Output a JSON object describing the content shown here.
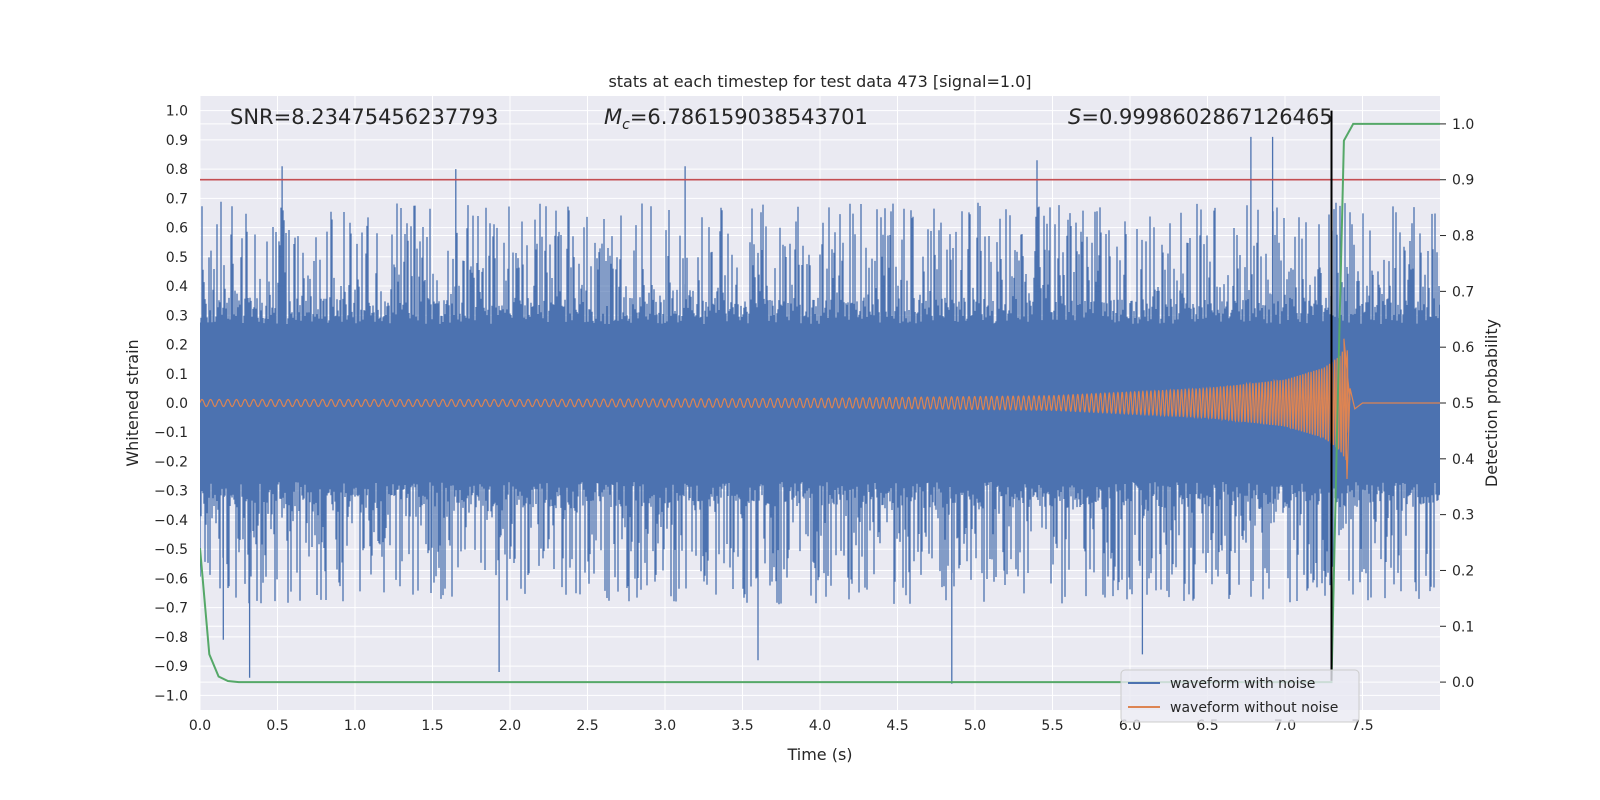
{
  "chart_data": {
    "type": "line",
    "title": "stats at each timestep for test data 473 [signal=1.0]",
    "xlabel": "Time (s)",
    "ylabel": "Whitened strain",
    "y2label": "Detection probability",
    "xlim": [
      0.0,
      8.0
    ],
    "ylim": [
      -1.05,
      1.05
    ],
    "y2lim": [
      -0.05,
      1.05
    ],
    "xticks": [
      0.0,
      0.5,
      1.0,
      1.5,
      2.0,
      2.5,
      3.0,
      3.5,
      4.0,
      4.5,
      5.0,
      5.5,
      6.0,
      6.5,
      7.0,
      7.5
    ],
    "xtick_labels": [
      "0.0",
      "0.5",
      "1.0",
      "1.5",
      "2.0",
      "2.5",
      "3.0",
      "3.5",
      "4.0",
      "4.5",
      "5.0",
      "5.5",
      "6.0",
      "6.5",
      "7.0",
      "7.5"
    ],
    "yticks": [
      1.0,
      0.9,
      0.8,
      0.7,
      0.6,
      0.5,
      0.4,
      0.3,
      0.2,
      0.1,
      0.0,
      -0.1,
      -0.2,
      -0.3,
      -0.4,
      -0.5,
      -0.6,
      -0.7,
      -0.8,
      -0.9,
      -1.0
    ],
    "ytick_labels": [
      "1.0",
      "0.9",
      "0.8",
      "0.7",
      "0.6",
      "0.5",
      "0.4",
      "0.3",
      "0.2",
      "0.1",
      "0.0",
      "−0.1",
      "−0.2",
      "−0.3",
      "−0.4",
      "−0.5",
      "−0.6",
      "−0.7",
      "−0.8",
      "−0.9",
      "−1.0"
    ],
    "y2ticks": [
      1.0,
      0.9,
      0.8,
      0.7,
      0.6,
      0.5,
      0.4,
      0.3,
      0.2,
      0.1,
      0.0
    ],
    "y2tick_labels": [
      "1.0",
      "0.9",
      "0.8",
      "0.7",
      "0.6",
      "0.5",
      "0.4",
      "0.3",
      "0.2",
      "0.1",
      "0.0"
    ],
    "grid": true,
    "legend_position": "bottom-right",
    "annotations": {
      "snr": "SNR=8.23475456237793",
      "mc_symbol": "M",
      "mc_sub": "c",
      "mc_value": "=6.786159038543701",
      "s_symbol": "S",
      "s_value": "=0.9998602867126465"
    },
    "threshold_line": {
      "y": 0.9,
      "axis": "right",
      "color": "#c44e52"
    },
    "detection_time_line": {
      "x": 7.3,
      "color": "#000000"
    },
    "series": [
      {
        "name": "waveform with noise",
        "axis": "left",
        "color": "#4c72b0",
        "description": "noisy whitened strain, dense band within about ±0.36 with spikes to about ±0.9",
        "spike_peaks_upper": [
          [
            0.53,
            0.81
          ],
          [
            1.65,
            0.8
          ],
          [
            3.13,
            0.81
          ],
          [
            5.4,
            0.83
          ],
          [
            6.78,
            0.91
          ],
          [
            6.92,
            0.91
          ]
        ],
        "spike_peaks_lower": [
          [
            0.15,
            -0.81
          ],
          [
            0.32,
            -0.94
          ],
          [
            1.93,
            -0.92
          ],
          [
            3.6,
            -0.88
          ],
          [
            4.85,
            -0.96
          ],
          [
            6.08,
            -0.86
          ],
          [
            7.3,
            -0.9
          ]
        ],
        "band": 0.36
      },
      {
        "name": "waveform without noise",
        "axis": "left",
        "color": "#dd8452",
        "envelope": [
          [
            0.0,
            0.012
          ],
          [
            2.0,
            0.012
          ],
          [
            4.0,
            0.016
          ],
          [
            5.5,
            0.025
          ],
          [
            6.5,
            0.05
          ],
          [
            7.0,
            0.08
          ],
          [
            7.25,
            0.12
          ],
          [
            7.35,
            0.16
          ],
          [
            7.4,
            0.2
          ],
          [
            7.42,
            0.0
          ]
        ],
        "end_time": 7.42
      },
      {
        "name": "detection probability",
        "axis": "right",
        "color": "#55a868",
        "x": [
          0.0,
          0.06,
          0.12,
          0.18,
          0.25,
          0.4,
          1.0,
          2.0,
          3.0,
          4.0,
          5.0,
          6.0,
          7.0,
          7.25,
          7.3,
          7.34,
          7.38,
          7.44,
          8.0
        ],
        "values": [
          0.24,
          0.05,
          0.01,
          0.002,
          0.0,
          0.0,
          0.0,
          0.0,
          0.0,
          0.0,
          0.0,
          0.0,
          0.0,
          0.0,
          0.0,
          0.5,
          0.97,
          1.0,
          1.0
        ]
      }
    ]
  }
}
